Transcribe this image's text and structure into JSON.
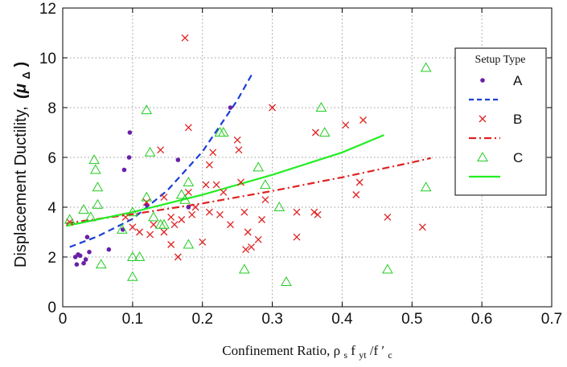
{
  "chart_data": {
    "type": "scatter",
    "xlabel": "Confinement Ratio, ρ",
    "xlabel_sub": "s",
    "xlabel_f": "f",
    "xlabel_sub2": "yt",
    "xlabel_div": "/f",
    "xlabel_tail": "′",
    "xlabel_sub3": "c",
    "ylabel": "Displacement Ductility,",
    "ylabel_symbol": "(μ",
    "ylabel_sub": "Δ",
    "ylabel_close": ")",
    "xlim": [
      0,
      0.7
    ],
    "ylim": [
      0,
      12
    ],
    "xticks": [
      "0",
      "0.1",
      "0.2",
      "0.3",
      "0.4",
      "0.5",
      "0.6",
      "0.7"
    ],
    "yticks": [
      "0",
      "2",
      "4",
      "6",
      "8",
      "10",
      "12"
    ],
    "grid": true,
    "legend": {
      "title": "Setup Type",
      "position": "right"
    },
    "series": [
      {
        "name": "A",
        "kind": "points",
        "marker": "dot",
        "color": "#6a1fa8",
        "points": [
          [
            0.018,
            2.0
          ],
          [
            0.02,
            1.7
          ],
          [
            0.022,
            2.1
          ],
          [
            0.025,
            2.05
          ],
          [
            0.03,
            1.75
          ],
          [
            0.033,
            1.9
          ],
          [
            0.035,
            2.8
          ],
          [
            0.038,
            2.2
          ],
          [
            0.066,
            2.3
          ],
          [
            0.086,
            3.1
          ],
          [
            0.088,
            5.5
          ],
          [
            0.095,
            6.0
          ],
          [
            0.096,
            7.0
          ],
          [
            0.12,
            4.1
          ],
          [
            0.165,
            5.9
          ],
          [
            0.18,
            4.0
          ],
          [
            0.24,
            8.0
          ]
        ]
      },
      {
        "name": "",
        "kind": "fit",
        "dash": "dashed",
        "color": "#1a3fd6",
        "points": [
          [
            0.01,
            2.4
          ],
          [
            0.05,
            2.83
          ],
          [
            0.1,
            3.53
          ],
          [
            0.15,
            4.68
          ],
          [
            0.2,
            6.23
          ],
          [
            0.25,
            8.3
          ],
          [
            0.272,
            9.4
          ]
        ]
      },
      {
        "name": "B",
        "kind": "points",
        "marker": "x",
        "color": "#e02020",
        "points": [
          [
            0.01,
            3.4
          ],
          [
            0.09,
            3.6
          ],
          [
            0.1,
            3.2
          ],
          [
            0.11,
            3.0
          ],
          [
            0.12,
            4.2
          ],
          [
            0.125,
            2.9
          ],
          [
            0.13,
            3.3
          ],
          [
            0.14,
            6.3
          ],
          [
            0.145,
            4.4
          ],
          [
            0.145,
            3.0
          ],
          [
            0.155,
            3.6
          ],
          [
            0.155,
            2.5
          ],
          [
            0.16,
            3.3
          ],
          [
            0.165,
            2.0
          ],
          [
            0.17,
            3.5
          ],
          [
            0.175,
            10.8
          ],
          [
            0.18,
            7.2
          ],
          [
            0.18,
            4.6
          ],
          [
            0.185,
            3.7
          ],
          [
            0.19,
            4.0
          ],
          [
            0.2,
            2.6
          ],
          [
            0.205,
            4.9
          ],
          [
            0.21,
            5.7
          ],
          [
            0.21,
            3.8
          ],
          [
            0.215,
            6.2
          ],
          [
            0.22,
            4.9
          ],
          [
            0.225,
            3.7
          ],
          [
            0.23,
            4.6
          ],
          [
            0.24,
            3.3
          ],
          [
            0.25,
            6.7
          ],
          [
            0.252,
            6.3
          ],
          [
            0.255,
            5.0
          ],
          [
            0.26,
            3.8
          ],
          [
            0.262,
            2.3
          ],
          [
            0.265,
            3.0
          ],
          [
            0.27,
            2.4
          ],
          [
            0.28,
            2.7
          ],
          [
            0.285,
            3.5
          ],
          [
            0.29,
            4.3
          ],
          [
            0.3,
            8.0
          ],
          [
            0.335,
            3.8
          ],
          [
            0.335,
            2.8
          ],
          [
            0.36,
            3.8
          ],
          [
            0.362,
            7.0
          ],
          [
            0.365,
            3.7
          ],
          [
            0.405,
            7.3
          ],
          [
            0.42,
            4.5
          ],
          [
            0.425,
            5.0
          ],
          [
            0.43,
            7.5
          ],
          [
            0.465,
            3.6
          ],
          [
            0.515,
            3.2
          ]
        ]
      },
      {
        "name": "",
        "kind": "fit",
        "dash": "dashdot",
        "color": "#e02020",
        "points": [
          [
            0.005,
            3.35
          ],
          [
            0.1,
            3.72
          ],
          [
            0.2,
            4.15
          ],
          [
            0.3,
            4.65
          ],
          [
            0.4,
            5.2
          ],
          [
            0.5,
            5.8
          ],
          [
            0.527,
            5.97
          ]
        ]
      },
      {
        "name": "C",
        "kind": "points",
        "marker": "triangle",
        "color": "#22cc22",
        "points": [
          [
            0.01,
            3.5
          ],
          [
            0.03,
            3.9
          ],
          [
            0.04,
            3.6
          ],
          [
            0.045,
            5.9
          ],
          [
            0.047,
            5.5
          ],
          [
            0.05,
            4.8
          ],
          [
            0.05,
            4.1
          ],
          [
            0.055,
            1.7
          ],
          [
            0.085,
            3.1
          ],
          [
            0.1,
            3.8
          ],
          [
            0.1,
            2.0
          ],
          [
            0.1,
            1.2
          ],
          [
            0.11,
            2.0
          ],
          [
            0.12,
            7.9
          ],
          [
            0.12,
            4.4
          ],
          [
            0.125,
            6.2
          ],
          [
            0.13,
            3.6
          ],
          [
            0.14,
            3.3
          ],
          [
            0.145,
            3.3
          ],
          [
            0.17,
            4.5
          ],
          [
            0.175,
            4.3
          ],
          [
            0.18,
            5.0
          ],
          [
            0.18,
            2.5
          ],
          [
            0.225,
            7.0
          ],
          [
            0.23,
            7.0
          ],
          [
            0.26,
            1.5
          ],
          [
            0.28,
            5.6
          ],
          [
            0.29,
            4.9
          ],
          [
            0.31,
            4.0
          ],
          [
            0.32,
            1.0
          ],
          [
            0.37,
            8.0
          ],
          [
            0.375,
            7.0
          ],
          [
            0.465,
            1.5
          ],
          [
            0.52,
            9.6
          ],
          [
            0.52,
            4.8
          ]
        ]
      },
      {
        "name": "",
        "kind": "fit",
        "dash": "solid",
        "color": "#22ee22",
        "points": [
          [
            0.005,
            3.25
          ],
          [
            0.1,
            3.8
          ],
          [
            0.2,
            4.5
          ],
          [
            0.3,
            5.3
          ],
          [
            0.4,
            6.2
          ],
          [
            0.46,
            6.9
          ]
        ]
      }
    ]
  },
  "colors": {
    "grid": "#9a9a9a",
    "axis": "#000000",
    "background": "#ffffff"
  }
}
